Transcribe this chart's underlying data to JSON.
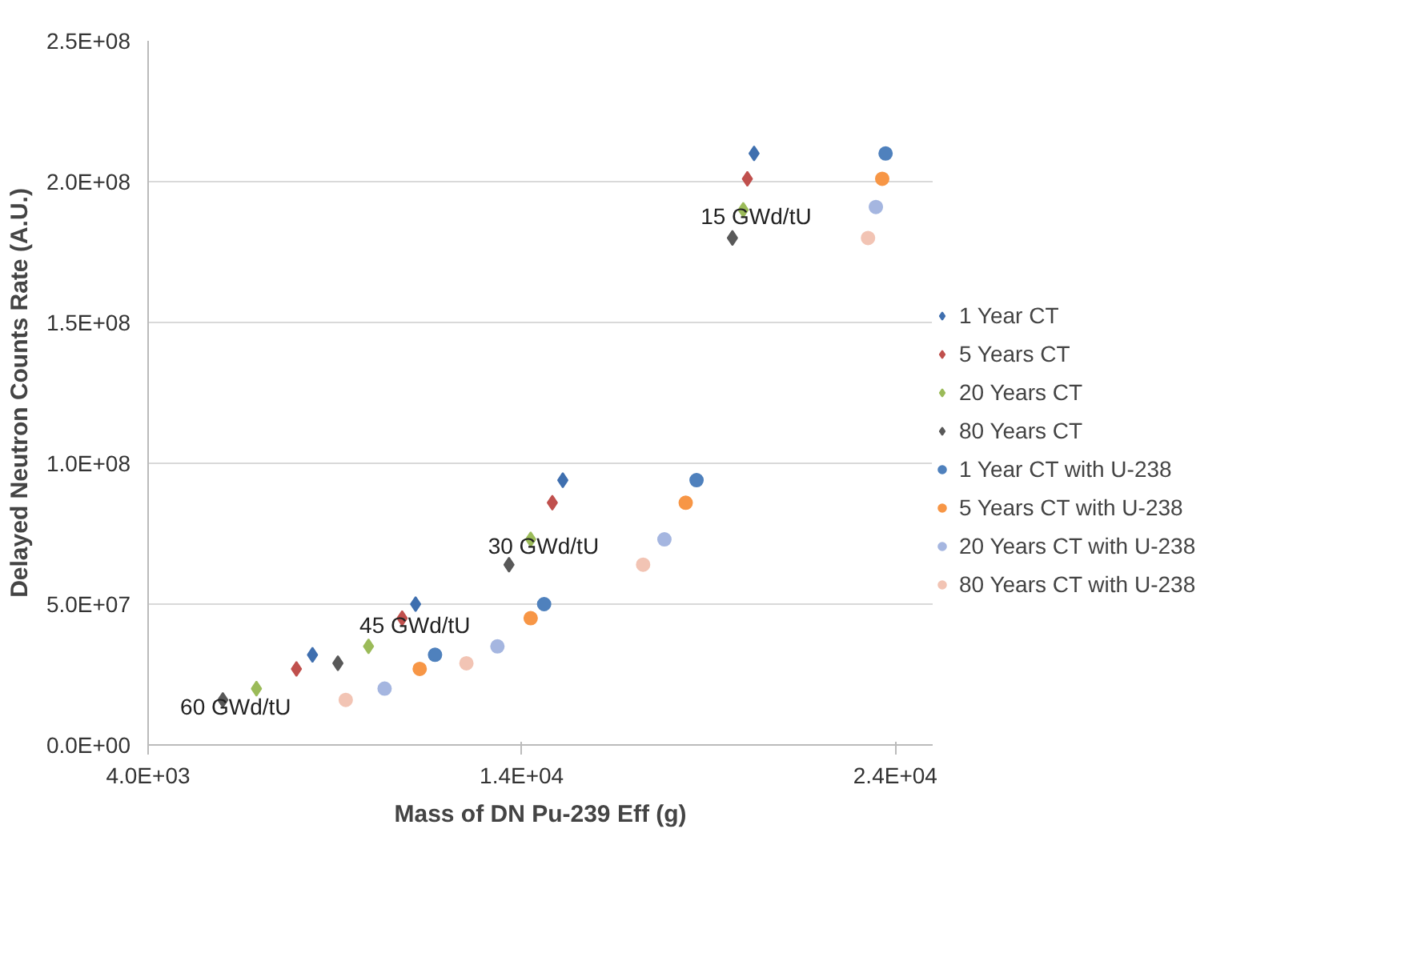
{
  "chart_data": {
    "type": "scatter",
    "xlabel": "Mass of DN Pu-239 Eff (g)",
    "ylabel": "Delayed Neutron Counts Rate (A.U.)",
    "xlim": [
      4000,
      25000
    ],
    "xticks": [
      {
        "value": 4000,
        "label": "4.0E+03"
      },
      {
        "value": 14000,
        "label": "1.4E+04"
      },
      {
        "value": 24000,
        "label": "2.4E+04"
      }
    ],
    "ylim": [
      0,
      250000000
    ],
    "yticks": [
      {
        "value": 0,
        "label": "0.0E+00"
      },
      {
        "value": 50000000,
        "label": "5.0E+07"
      },
      {
        "value": 100000000,
        "label": "1.0E+08"
      },
      {
        "value": 150000000,
        "label": "1.5E+08"
      },
      {
        "value": 200000000,
        "label": "2.0E+08"
      },
      {
        "value": 250000000,
        "label": "2.5E+08"
      }
    ],
    "grid": "y",
    "legend": "right",
    "series": [
      {
        "name": "1 Year CT",
        "color": "#3f6faf",
        "marker": "diamond",
        "x": [
          20220,
          15100,
          11160,
          8400
        ],
        "values": [
          210000000,
          94000000,
          50000000,
          32000000
        ]
      },
      {
        "name": "5 Years CT",
        "color": "#c0504d",
        "marker": "diamond",
        "x": [
          20040,
          14820,
          10800,
          7970
        ],
        "values": [
          201000000,
          86000000,
          45000000,
          27000000
        ]
      },
      {
        "name": "20 Years CT",
        "color": "#9bbb59",
        "marker": "diamond",
        "x": [
          19930,
          14240,
          9900,
          6900
        ],
        "values": [
          190000000,
          73000000,
          35000000,
          20000000
        ]
      },
      {
        "name": "80 Years CT",
        "color": "#595959",
        "marker": "diamond",
        "x": [
          19640,
          13660,
          9080,
          6000
        ],
        "values": [
          180000000,
          64000000,
          29000000,
          16000000
        ]
      },
      {
        "name": "1 Year CT with U-238",
        "color": "#4f81bd",
        "marker": "circle",
        "x": [
          23740,
          18680,
          14600,
          11680
        ],
        "values": [
          210000000,
          94000000,
          50000000,
          32000000
        ]
      },
      {
        "name": "5 Years CT with U-238",
        "color": "#f79646",
        "marker": "circle",
        "x": [
          23650,
          18390,
          14240,
          11270
        ],
        "values": [
          201000000,
          86000000,
          45000000,
          27000000
        ]
      },
      {
        "name": "20 Years CT with U-238",
        "color": "#a5b6e0",
        "marker": "circle",
        "x": [
          23480,
          17820,
          13350,
          10330
        ],
        "values": [
          191000000,
          73000000,
          35000000,
          20000000
        ]
      },
      {
        "name": "80 Years CT with U-238",
        "color": "#f2c4b4",
        "marker": "circle",
        "x": [
          23270,
          17250,
          12520,
          9290
        ],
        "values": [
          180000000,
          64000000,
          29000000,
          16000000
        ]
      }
    ],
    "annotations": [
      {
        "text": "15 GWd/tU",
        "x": 19930,
        "y": 190000000
      },
      {
        "text": "30 GWd/tU",
        "x": 14240,
        "y": 73000000
      },
      {
        "text": "45 GWd/tU",
        "x": 10800,
        "y": 45000000
      },
      {
        "text": "60 GWd/tU",
        "x": 6000,
        "y": 16000000
      }
    ]
  }
}
